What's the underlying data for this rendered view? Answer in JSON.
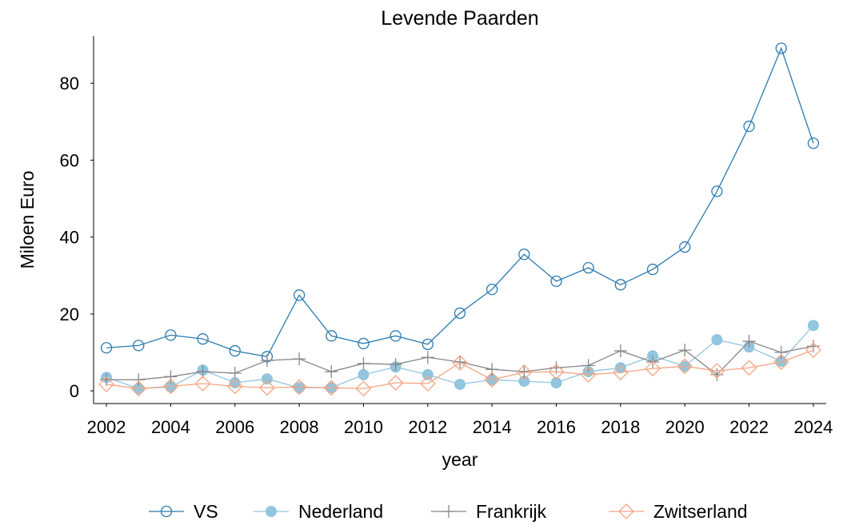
{
  "chart_data": {
    "type": "line",
    "title": "Levende Paarden",
    "xlabel": "year",
    "ylabel": "Miloen Euro",
    "x": [
      2002,
      2003,
      2004,
      2005,
      2006,
      2007,
      2008,
      2009,
      2010,
      2011,
      2012,
      2013,
      2014,
      2015,
      2016,
      2017,
      2018,
      2019,
      2020,
      2021,
      2022,
      2023,
      2024
    ],
    "series": [
      {
        "name": "VS",
        "color": "#2b7bb0",
        "marker": "open-circle",
        "values": [
          11.2,
          11.8,
          14.5,
          13.5,
          10.4,
          8.9,
          24.9,
          14.3,
          12.3,
          14.3,
          12.1,
          20.2,
          26.4,
          35.5,
          28.5,
          32.0,
          27.6,
          31.6,
          37.4,
          51.9,
          68.8,
          89.1,
          64.4
        ]
      },
      {
        "name": "Nederland",
        "color": "#92c5de",
        "marker": "filled-circle",
        "values": [
          3.5,
          0.6,
          1.0,
          5.4,
          2.1,
          3.1,
          0.8,
          0.8,
          4.2,
          6.2,
          4.2,
          1.7,
          2.9,
          2.5,
          2.1,
          5.0,
          6.0,
          9.1,
          6.4,
          13.3,
          11.4,
          7.7,
          17.0
        ]
      },
      {
        "name": "Frankrijk",
        "color": "#888888",
        "marker": "plus",
        "values": [
          2.9,
          2.9,
          3.7,
          5.0,
          4.6,
          7.9,
          8.3,
          5.0,
          7.1,
          6.9,
          8.7,
          7.5,
          5.6,
          5.0,
          6.0,
          6.6,
          10.4,
          7.5,
          10.6,
          4.2,
          12.9,
          10.0,
          11.6
        ]
      },
      {
        "name": "Zwitserland",
        "color": "#f4a582",
        "marker": "open-diamond",
        "values": [
          1.7,
          0.6,
          1.2,
          1.9,
          1.2,
          0.8,
          1.0,
          0.8,
          0.6,
          2.1,
          1.9,
          7.3,
          2.9,
          4.8,
          5.0,
          4.2,
          4.8,
          5.8,
          6.4,
          5.2,
          6.0,
          7.5,
          10.6
        ]
      }
    ],
    "xlim": [
      2001.6,
      2024.4
    ],
    "xticks": [
      2002,
      2004,
      2006,
      2008,
      2010,
      2012,
      2014,
      2016,
      2018,
      2020,
      2022,
      2024
    ],
    "ylim": [
      -3.3,
      92.3
    ],
    "yticks": [
      0,
      20,
      40,
      60,
      80
    ],
    "grid": false,
    "legend": "bottom"
  }
}
